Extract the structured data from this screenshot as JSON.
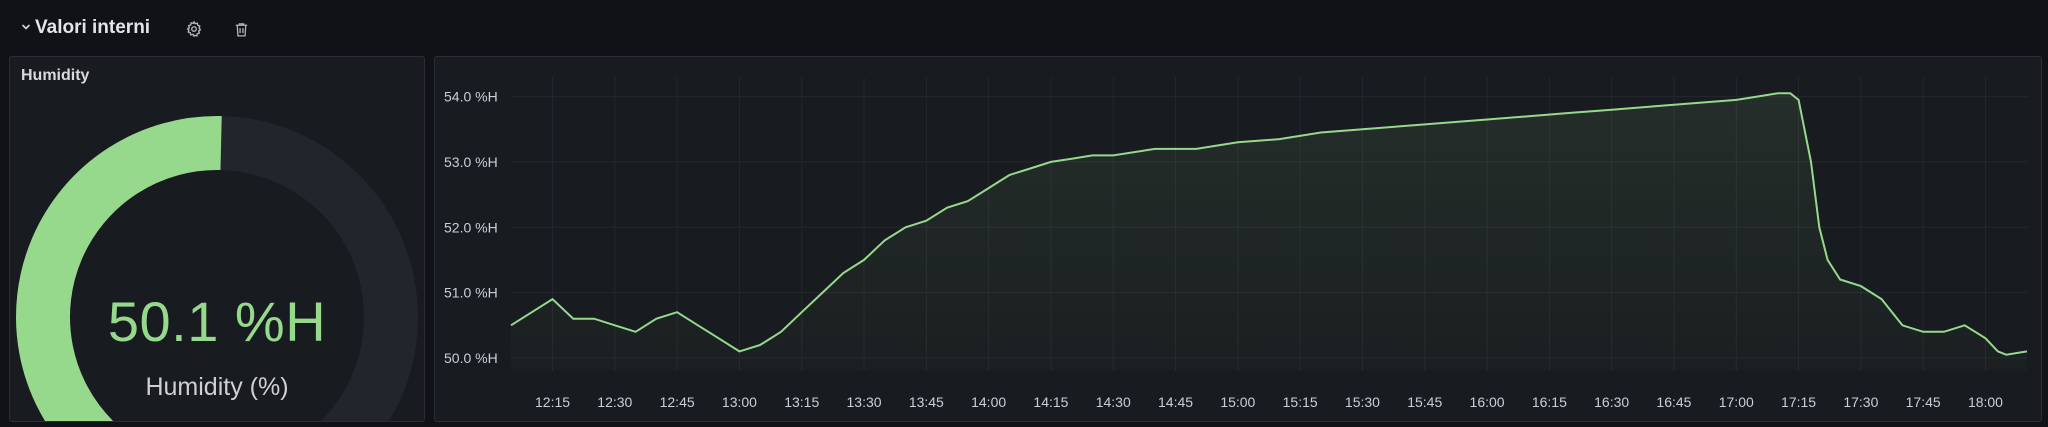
{
  "row": {
    "title": "Valori interni",
    "icons": [
      "chevron-down-icon",
      "gear-icon",
      "trash-icon"
    ]
  },
  "gauge_panel": {
    "title": "Humidity",
    "value_text": "50.1 %H",
    "label": "Humidity (%)",
    "value": 50.1,
    "min": 40,
    "max": 60,
    "color": "#96d98d",
    "track_color": "#22252b"
  },
  "chart_data": {
    "type": "line",
    "title": "",
    "xlabel": "",
    "ylabel": "",
    "x_ticks": [
      "12:15",
      "12:30",
      "12:45",
      "13:00",
      "13:15",
      "13:30",
      "13:45",
      "14:00",
      "14:15",
      "14:30",
      "14:45",
      "15:00",
      "15:15",
      "15:30",
      "15:45",
      "16:00",
      "16:15",
      "16:30",
      "16:45",
      "17:00",
      "17:15",
      "17:30",
      "17:45",
      "18:00"
    ],
    "y_ticks": [
      "50.0 %H",
      "51.0 %H",
      "52.0 %H",
      "53.0 %H",
      "54.0 %H"
    ],
    "ylim": [
      49.8,
      54.3
    ],
    "xlim": [
      "12:05",
      "18:10"
    ],
    "grid": true,
    "color": "#96d98d",
    "series": [
      {
        "name": "",
        "x": [
          "12:05",
          "12:10",
          "12:15",
          "12:20",
          "12:25",
          "12:30",
          "12:35",
          "12:40",
          "12:45",
          "12:50",
          "12:55",
          "13:00",
          "13:05",
          "13:10",
          "13:15",
          "13:20",
          "13:25",
          "13:30",
          "13:35",
          "13:40",
          "13:45",
          "13:50",
          "13:55",
          "14:00",
          "14:05",
          "14:10",
          "14:15",
          "14:20",
          "14:25",
          "14:30",
          "14:40",
          "14:50",
          "15:00",
          "15:10",
          "15:20",
          "15:30",
          "15:40",
          "15:50",
          "16:00",
          "16:10",
          "16:20",
          "16:30",
          "16:40",
          "16:50",
          "17:00",
          "17:05",
          "17:10",
          "17:13",
          "17:15",
          "17:18",
          "17:20",
          "17:22",
          "17:25",
          "17:30",
          "17:35",
          "17:40",
          "17:45",
          "17:50",
          "17:55",
          "18:00",
          "18:03",
          "18:05",
          "18:10"
        ],
        "y": [
          50.5,
          50.7,
          50.9,
          50.6,
          50.6,
          50.5,
          50.4,
          50.6,
          50.7,
          50.5,
          50.3,
          50.1,
          50.2,
          50.4,
          50.7,
          51.0,
          51.3,
          51.5,
          51.8,
          52.0,
          52.1,
          52.3,
          52.4,
          52.6,
          52.8,
          52.9,
          53.0,
          53.05,
          53.1,
          53.1,
          53.2,
          53.2,
          53.3,
          53.35,
          53.45,
          53.5,
          53.55,
          53.6,
          53.65,
          53.7,
          53.75,
          53.8,
          53.85,
          53.9,
          53.95,
          54.0,
          54.05,
          54.05,
          53.95,
          53.0,
          52.0,
          51.5,
          51.2,
          51.1,
          50.9,
          50.5,
          50.4,
          50.4,
          50.5,
          50.3,
          50.1,
          50.05,
          50.1
        ]
      }
    ]
  }
}
